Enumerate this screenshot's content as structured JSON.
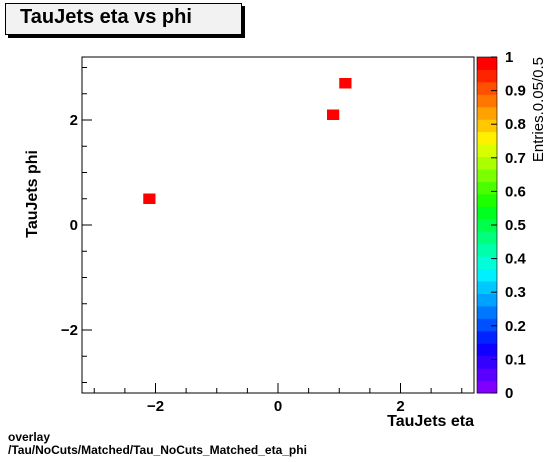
{
  "title": "TauJets eta vs phi",
  "footer": {
    "line1": "overlay",
    "line2": "/Tau/NoCuts/Matched/Tau_NoCuts_Matched_eta_phi"
  },
  "chart_data": {
    "type": "heatmap",
    "title": "TauJets eta vs phi",
    "xlabel": "TauJets eta",
    "ylabel": "TauJets phi",
    "zlabel": "Entries.0.05/0.5",
    "xlim": [
      -3.2,
      3.2
    ],
    "ylim": [
      -3.2,
      3.2
    ],
    "zlim": [
      0,
      1
    ],
    "x_ticks": [
      -2,
      0,
      2
    ],
    "y_ticks": [
      -2,
      0,
      2
    ],
    "x_tick_labels": [
      "−2",
      "0",
      "2"
    ],
    "y_tick_labels": [
      "−2",
      "0",
      "2"
    ],
    "z_ticks": [
      0,
      0.1,
      0.2,
      0.3,
      0.4,
      0.5,
      0.6,
      0.7,
      0.8,
      0.9,
      1
    ],
    "z_tick_labels": [
      "0",
      "0.1",
      "0.2",
      "0.3",
      "0.4",
      "0.5",
      "0.6",
      "0.7",
      "0.8",
      "0.9",
      "1"
    ],
    "bin_width": [
      0.2,
      0.2
    ],
    "points": [
      {
        "x": -2.1,
        "y": 0.5,
        "z": 1
      },
      {
        "x": 0.9,
        "y": 2.1,
        "z": 1
      },
      {
        "x": 1.1,
        "y": 2.7,
        "z": 1
      }
    ],
    "colorbar_colors": [
      "#7f00ff",
      "#5a00ff",
      "#3600ff",
      "#1000ff",
      "#0024ff",
      "#0050ff",
      "#0077ff",
      "#00a2ff",
      "#00c8ff",
      "#00f0ff",
      "#00ffd8",
      "#00ffaa",
      "#00ff7c",
      "#00ff4c",
      "#00ff1e",
      "#1eff00",
      "#4cff00",
      "#7cff00",
      "#aaff00",
      "#d8ff00",
      "#fff000",
      "#ffc800",
      "#ffa200",
      "#ff7700",
      "#ff5000",
      "#ff2400",
      "#ff0000"
    ],
    "grid": false
  }
}
